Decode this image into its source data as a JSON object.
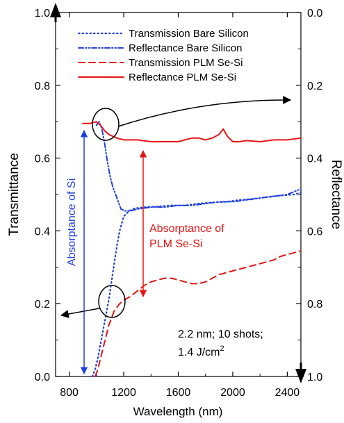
{
  "chart_data": {
    "type": "line",
    "xlabel": "Wavelength (nm)",
    "ylabel_left": "Transmittance",
    "ylabel_right": "Reflectance",
    "xlim": [
      700,
      2500
    ],
    "ylim_left": [
      0.0,
      1.0
    ],
    "ylim_right": [
      1.0,
      0.0
    ],
    "xticks": [
      "800",
      "1200",
      "1600",
      "2000",
      "2400"
    ],
    "xtick_values": [
      800,
      1200,
      1600,
      2000,
      2400
    ],
    "yticks_left": [
      "0.0",
      "0.2",
      "0.4",
      "0.6",
      "0.8",
      "1.0"
    ],
    "yticks_left_values": [
      0.0,
      0.2,
      0.4,
      0.6,
      0.8,
      1.0
    ],
    "yticks_right": [
      "0.0",
      "0.2",
      "0.4",
      "0.6",
      "0.8",
      "1.0"
    ],
    "yticks_right_values": [
      0.0,
      0.2,
      0.4,
      0.6,
      0.8,
      1.0
    ],
    "grid": false,
    "legend_position": "top-center",
    "series": [
      {
        "name": "Transmission Bare Silicon",
        "axis": "left",
        "color": "#1f3fe0",
        "style": "dotted",
        "x": [
          970,
          990,
          1010,
          1030,
          1050,
          1070,
          1090,
          1110,
          1130,
          1150,
          1170,
          1200,
          1240,
          1280,
          1350,
          1450,
          1550,
          1650,
          1750,
          1850,
          1950,
          2050,
          2150,
          2250,
          2350,
          2450,
          2500
        ],
        "y": [
          0.0,
          0.02,
          0.05,
          0.09,
          0.13,
          0.17,
          0.21,
          0.26,
          0.31,
          0.36,
          0.4,
          0.44,
          0.455,
          0.462,
          0.465,
          0.467,
          0.47,
          0.47,
          0.475,
          0.478,
          0.48,
          0.485,
          0.488,
          0.493,
          0.497,
          0.5,
          0.505
        ]
      },
      {
        "name": "Reflectance Bare Silicon",
        "axis": "right",
        "color": "#1f3fe0",
        "style": "dashdotdot",
        "x": [
          1000,
          1020,
          1040,
          1060,
          1080,
          1100,
          1120,
          1150,
          1180,
          1210,
          1250,
          1300,
          1400,
          1500,
          1600,
          1700,
          1800,
          1900,
          2000,
          2100,
          2200,
          2300,
          2400,
          2500
        ],
        "y": [
          0.31,
          0.3,
          0.32,
          0.36,
          0.41,
          0.45,
          0.48,
          0.51,
          0.54,
          0.545,
          0.545,
          0.54,
          0.535,
          0.535,
          0.53,
          0.53,
          0.525,
          0.52,
          0.52,
          0.515,
          0.51,
          0.505,
          0.5,
          0.485
        ]
      },
      {
        "name": "Transmission PLM Se-Si",
        "axis": "left",
        "color": "#e81414",
        "style": "dashed",
        "x": [
          990,
          1010,
          1030,
          1050,
          1070,
          1090,
          1110,
          1130,
          1150,
          1170,
          1200,
          1250,
          1300,
          1350,
          1400,
          1450,
          1500,
          1550,
          1600,
          1650,
          1700,
          1750,
          1800,
          1850,
          1900,
          1950,
          2000,
          2050,
          2100,
          2150,
          2200,
          2250,
          2300,
          2350,
          2400,
          2450,
          2500
        ],
        "y": [
          0.0,
          0.02,
          0.05,
          0.08,
          0.11,
          0.14,
          0.16,
          0.18,
          0.19,
          0.2,
          0.21,
          0.22,
          0.235,
          0.25,
          0.26,
          0.265,
          0.27,
          0.27,
          0.265,
          0.26,
          0.255,
          0.255,
          0.26,
          0.27,
          0.28,
          0.285,
          0.29,
          0.295,
          0.3,
          0.305,
          0.31,
          0.315,
          0.32,
          0.33,
          0.335,
          0.34,
          0.345
        ]
      },
      {
        "name": "Reflectance PLM Se-Si",
        "axis": "right",
        "color": "#e81414",
        "style": "solid",
        "x": [
          900,
          950,
          1000,
          1030,
          1060,
          1090,
          1120,
          1150,
          1200,
          1300,
          1400,
          1500,
          1600,
          1650,
          1700,
          1750,
          1800,
          1850,
          1900,
          1930,
          1960,
          2000,
          2050,
          2100,
          2200,
          2300,
          2400,
          2500
        ],
        "y": [
          0.305,
          0.305,
          0.3,
          0.31,
          0.325,
          0.335,
          0.34,
          0.345,
          0.35,
          0.35,
          0.355,
          0.355,
          0.355,
          0.35,
          0.345,
          0.345,
          0.35,
          0.345,
          0.335,
          0.32,
          0.34,
          0.355,
          0.355,
          0.352,
          0.355,
          0.35,
          0.35,
          0.345
        ]
      }
    ],
    "annotations": {
      "absorptance_si": "Absorptance of Si",
      "absorptance_plm_line1": "Absorptance of",
      "absorptance_plm_line2": "PLM Se-Si",
      "conditions_line1": "2.2 nm; 10 shots;",
      "conditions_line2_prefix": "1.4 J/cm",
      "conditions_line2_sup": "2"
    }
  }
}
